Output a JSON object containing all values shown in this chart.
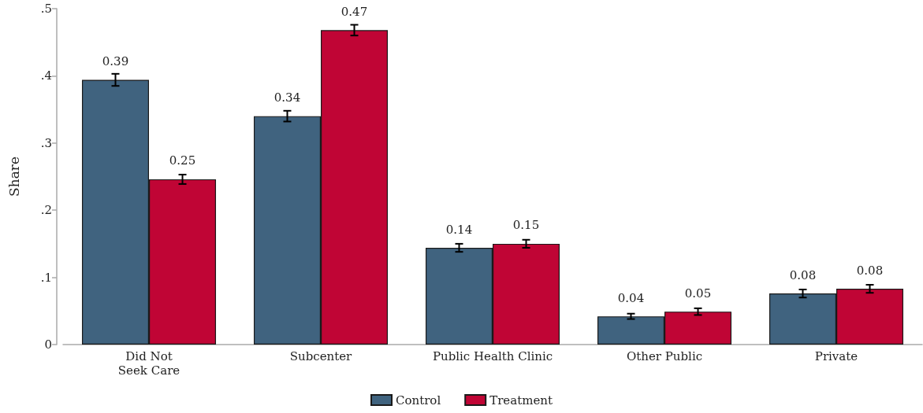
{
  "chart_data": {
    "type": "bar",
    "ylabel": "Share",
    "categories": [
      "Did Not\nSeek Care",
      "Subcenter",
      "Public Health Clinic",
      "Other Public",
      "Private"
    ],
    "series": [
      {
        "name": "Control",
        "color": "#40637f",
        "values": [
          0.394,
          0.34,
          0.144,
          0.042,
          0.076
        ],
        "errors": [
          0.009,
          0.008,
          0.006,
          0.004,
          0.006
        ],
        "value_labels": [
          "0.39",
          "0.34",
          "0.14",
          "0.04",
          "0.08"
        ]
      },
      {
        "name": "Treatment",
        "color": "#c00535",
        "values": [
          0.246,
          0.468,
          0.15,
          0.049,
          0.083
        ],
        "errors": [
          0.007,
          0.008,
          0.006,
          0.005,
          0.006
        ],
        "value_labels": [
          "0.25",
          "0.47",
          "0.15",
          "0.05",
          "0.08"
        ]
      }
    ],
    "ylim": [
      0,
      0.5
    ],
    "yticks": [
      0,
      {
        "value": 0.1,
        "label": ".1"
      },
      {
        "value": 0.2,
        "label": ".2"
      },
      {
        "value": 0.3,
        "label": ".3"
      },
      {
        "value": 0.4,
        "label": ".4"
      },
      {
        "value": 0.5,
        "label": ".5"
      }
    ],
    "legend": "bottom"
  }
}
